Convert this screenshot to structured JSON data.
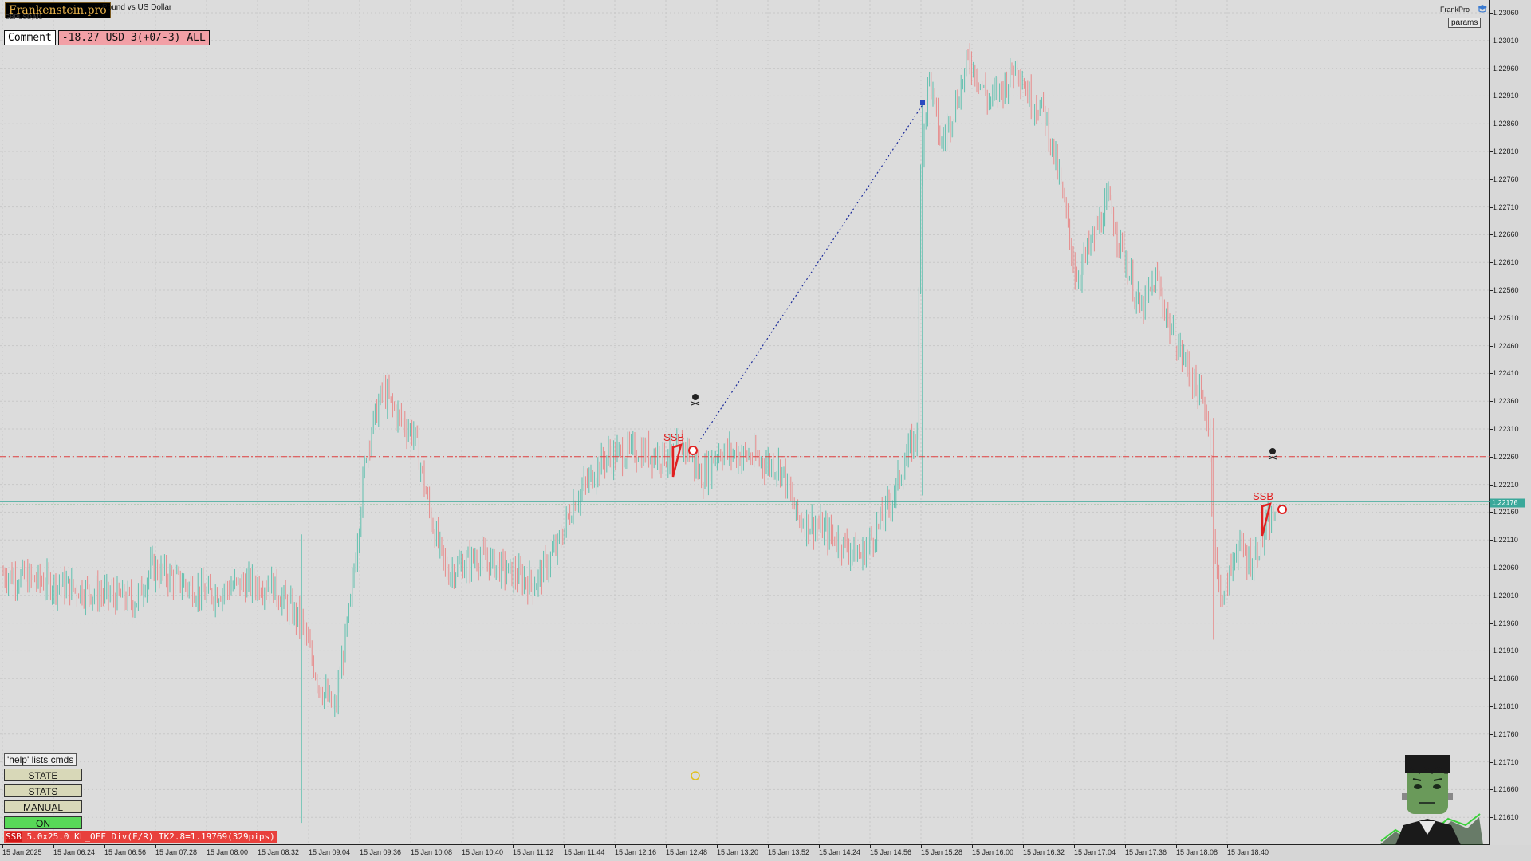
{
  "app": {
    "logo_text": "Frankenstein.pro",
    "symbol_title": "Pound vs US Dollar",
    "sub_text": "GBPUSD,M1"
  },
  "comment": {
    "label": "Comment",
    "value": "-18.27 USD 3(+0/-3) ALL"
  },
  "top_right": {
    "brand": "FrankPro",
    "params_label": "params",
    "brand_icon": "graduation-cap-icon"
  },
  "panel": {
    "help_text": "'help' lists cmds",
    "buttons": [
      {
        "label": "STATE",
        "color": "#d8d8b8"
      },
      {
        "label": "STATS",
        "color": "#d8d8b8"
      },
      {
        "label": "MANUAL",
        "color": "#d8d8b8"
      },
      {
        "label": "ON",
        "color": "#58d858"
      }
    ],
    "status_prefix": "SSB",
    "status_text": " 5.0x25.0 KL_OFF Div(F/R) TK2.8=1.19769(329pips)"
  },
  "price_axis": {
    "labels": [
      "1.23060",
      "1.23010",
      "1.22960",
      "1.22910",
      "1.22860",
      "1.22810",
      "1.22760",
      "1.22710",
      "1.22660",
      "1.22610",
      "1.22560",
      "1.22510",
      "1.22460",
      "1.22410",
      "1.22360",
      "1.22310",
      "1.22260",
      "1.22210",
      "1.22160",
      "1.22110",
      "1.22060",
      "1.22010",
      "1.21960",
      "1.21910",
      "1.21860",
      "1.21810",
      "1.21760",
      "1.21710",
      "1.21660",
      "1.21610"
    ],
    "current_price": "1.22176"
  },
  "time_axis": {
    "labels": [
      "15 Jan 2025",
      "15 Jan 06:24",
      "15 Jan 06:56",
      "15 Jan 07:28",
      "15 Jan 08:00",
      "15 Jan 08:32",
      "15 Jan 09:04",
      "15 Jan 09:36",
      "15 Jan 10:08",
      "15 Jan 10:40",
      "15 Jan 11:12",
      "15 Jan 11:44",
      "15 Jan 12:16",
      "15 Jan 12:48",
      "15 Jan 13:20",
      "15 Jan 13:52",
      "15 Jan 14:24",
      "15 Jan 14:56",
      "15 Jan 15:28",
      "15 Jan 16:00",
      "15 Jan 16:32",
      "15 Jan 17:04",
      "15 Jan 17:36",
      "15 Jan 18:08",
      "15 Jan 18:40"
    ]
  },
  "chart_annotations": {
    "ssb_label_1": "SSB",
    "ssb_label_2": "SSB",
    "red_level": 1.2226,
    "green_level": 1.22176
  },
  "colors": {
    "bull": "#5fc0ae",
    "bear": "#e88a8a",
    "red_line": "#e04040",
    "green_line": "#3aa89a",
    "trend_line": "#1a2a9a"
  },
  "chart_data": {
    "type": "candlestick",
    "symbol_title": "Pound vs US Dollar",
    "ylim": [
      1.2159,
      1.2307
    ],
    "anchor_path": [
      [
        0,
        1.2205
      ],
      [
        170,
        1.22
      ],
      [
        190,
        1.2206
      ],
      [
        260,
        1.2201
      ],
      [
        300,
        1.2203
      ],
      [
        340,
        1.2203
      ],
      [
        378,
        1.2196
      ],
      [
        400,
        1.2185
      ],
      [
        420,
        1.218
      ],
      [
        440,
        1.22
      ],
      [
        460,
        1.2228
      ],
      [
        480,
        1.2238
      ],
      [
        500,
        1.2233
      ],
      [
        520,
        1.223
      ],
      [
        540,
        1.2215
      ],
      [
        560,
        1.2205
      ],
      [
        600,
        1.2208
      ],
      [
        640,
        1.2205
      ],
      [
        670,
        1.2203
      ],
      [
        700,
        1.221
      ],
      [
        720,
        1.2218
      ],
      [
        740,
        1.2222
      ],
      [
        760,
        1.2226
      ],
      [
        800,
        1.2227
      ],
      [
        840,
        1.2226
      ],
      [
        860,
        1.2228
      ],
      [
        880,
        1.2222
      ],
      [
        900,
        1.2227
      ],
      [
        940,
        1.2226
      ],
      [
        980,
        1.2224
      ],
      [
        1000,
        1.2215
      ],
      [
        1030,
        1.2213
      ],
      [
        1060,
        1.221
      ],
      [
        1080,
        1.2208
      ],
      [
        1100,
        1.2213
      ],
      [
        1120,
        1.2219
      ],
      [
        1140,
        1.2227
      ],
      [
        1150,
        1.223
      ],
      [
        1155,
        1.228
      ],
      [
        1165,
        1.2295
      ],
      [
        1180,
        1.2282
      ],
      [
        1200,
        1.229
      ],
      [
        1215,
        1.2298
      ],
      [
        1240,
        1.229
      ],
      [
        1260,
        1.2293
      ],
      [
        1275,
        1.2297
      ],
      [
        1290,
        1.2291
      ],
      [
        1310,
        1.2288
      ],
      [
        1330,
        1.2275
      ],
      [
        1350,
        1.2258
      ],
      [
        1370,
        1.2265
      ],
      [
        1390,
        1.2272
      ],
      [
        1410,
        1.2262
      ],
      [
        1430,
        1.2252
      ],
      [
        1450,
        1.2258
      ],
      [
        1470,
        1.2248
      ],
      [
        1490,
        1.2242
      ],
      [
        1515,
        1.2233
      ],
      [
        1525,
        1.2205
      ],
      [
        1535,
        1.22
      ],
      [
        1550,
        1.221
      ],
      [
        1570,
        1.2207
      ],
      [
        1585,
        1.2212
      ],
      [
        1600,
        1.2216
      ]
    ]
  }
}
